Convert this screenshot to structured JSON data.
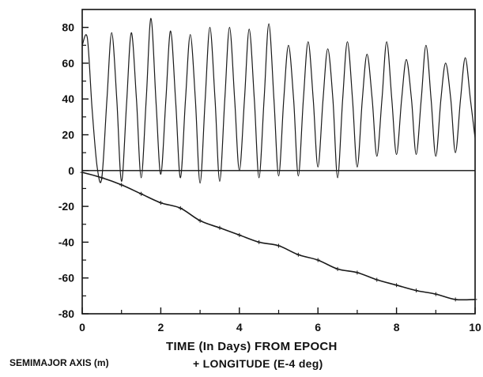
{
  "chart_data": {
    "type": "line",
    "xlim": [
      0,
      10
    ],
    "ylim": [
      -80,
      90
    ],
    "x_ticks": [
      0,
      2,
      4,
      6,
      8,
      10
    ],
    "y_ticks": [
      80,
      60,
      40,
      20,
      0,
      -20,
      -40,
      -60,
      -80
    ],
    "x_tick_labels": [
      "0",
      "2",
      "4",
      "6",
      "8",
      "10"
    ],
    "y_tick_labels": [
      "80",
      "60",
      "40",
      "20",
      "0",
      "-20",
      "-40",
      "-60",
      "-80"
    ],
    "ylabel": "SEMIMAJOR AXIS (m)",
    "xlabel_line1": "TIME (In Days) FROM EPOCH",
    "xlabel_line2": "+ LONGITUDE (E-4 deg)",
    "grid": false,
    "zero_line": true,
    "series": [
      {
        "x": [
          0.0,
          0.13,
          0.25,
          0.38,
          0.5,
          0.63,
          0.75,
          0.88,
          1.0,
          1.13,
          1.25,
          1.38,
          1.5,
          1.63,
          1.75,
          1.88,
          2.0,
          2.13,
          2.25,
          2.38,
          2.5,
          2.63,
          2.75,
          2.88,
          3.0,
          3.13,
          3.25,
          3.38,
          3.5,
          3.63,
          3.75,
          3.88,
          4.0,
          4.13,
          4.25,
          4.38,
          4.5,
          4.63,
          4.75,
          4.88,
          5.0,
          5.13,
          5.25,
          5.38,
          5.5,
          5.63,
          5.75,
          5.88,
          6.0,
          6.13,
          6.25,
          6.38,
          6.5,
          6.63,
          6.75,
          6.88,
          7.0,
          7.13,
          7.25,
          7.38,
          7.5,
          7.63,
          7.75,
          7.88,
          8.0,
          8.13,
          8.25,
          8.38,
          8.5,
          8.63,
          8.75,
          8.88,
          9.0,
          9.13,
          9.25,
          9.38,
          9.5,
          9.63,
          9.75,
          9.88,
          10.0
        ],
        "y": [
          70,
          74,
          35,
          2,
          -4,
          40,
          77,
          40,
          -6,
          38,
          77,
          40,
          -4,
          40,
          85,
          38,
          -2,
          40,
          78,
          38,
          -4,
          40,
          76,
          40,
          -7,
          40,
          80,
          40,
          -6,
          40,
          80,
          40,
          0,
          40,
          79,
          40,
          -4,
          40,
          82,
          40,
          -3,
          40,
          70,
          40,
          -3,
          40,
          72,
          40,
          2,
          40,
          68,
          40,
          -4,
          40,
          72,
          40,
          2,
          40,
          65,
          40,
          8,
          40,
          72,
          40,
          9,
          40,
          62,
          40,
          9,
          40,
          70,
          40,
          8,
          40,
          60,
          40,
          10,
          40,
          63,
          40,
          18
        ]
      },
      {
        "x": [
          0.0,
          0.5,
          1.0,
          1.5,
          2.0,
          2.5,
          3.0,
          3.5,
          4.0,
          4.5,
          5.0,
          5.5,
          6.0,
          6.5,
          7.0,
          7.5,
          8.0,
          8.5,
          9.0,
          9.5,
          10.0
        ],
        "y": [
          -1,
          -4,
          -8,
          -13,
          -18,
          -21,
          -28,
          -32,
          -36,
          -40,
          -42,
          -47,
          -50,
          -55,
          -57,
          -61,
          -64,
          -67,
          -69,
          -72,
          -72
        ]
      }
    ]
  }
}
